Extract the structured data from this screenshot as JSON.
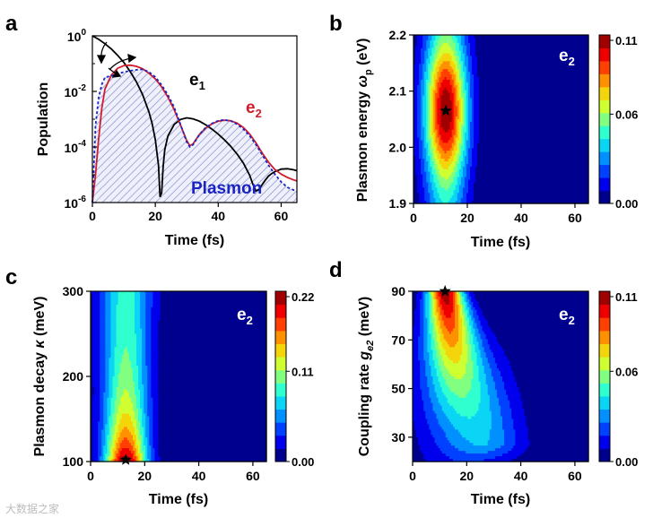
{
  "watermark": "大数据之家",
  "palette": {
    "jet": [
      "#00008f",
      "#0000ff",
      "#0060ff",
      "#00c0ff",
      "#20ffdf",
      "#80ff80",
      "#dfff20",
      "#ffc000",
      "#ff6000",
      "#ff0000",
      "#a00000"
    ],
    "e1_color": "#000000",
    "e2_color": "#d01c2c",
    "plasmon_color": "#1a24c4"
  },
  "chart_data": [
    {
      "panel": "a",
      "type": "line",
      "xlabel": "Time (fs)",
      "ylabel": "Population",
      "xlim": [
        0,
        65
      ],
      "ylim": [
        1e-06,
        1
      ],
      "yscale": "log",
      "xticks": [
        "0",
        "20",
        "40",
        "60"
      ],
      "yticks": [
        {
          "base": "10",
          "exp": "0"
        },
        {
          "base": "10",
          "exp": "-2"
        },
        {
          "base": "10",
          "exp": "-4"
        },
        {
          "base": "10",
          "exp": "-6"
        }
      ],
      "series": [
        {
          "name": "e",
          "sub": "1",
          "style": "solid",
          "color": "#000000",
          "x": [
            0,
            2,
            4,
            6,
            8,
            10,
            12,
            14,
            16,
            18,
            19,
            20,
            21,
            21.5,
            22,
            22.5,
            23,
            24,
            26,
            28,
            30,
            32,
            34,
            36,
            38,
            40,
            42,
            44,
            46,
            48,
            50,
            51,
            52,
            53,
            54,
            55,
            56,
            57,
            58,
            60,
            62,
            64,
            65
          ],
          "y": [
            1,
            0.75,
            0.52,
            0.34,
            0.2,
            0.11,
            0.052,
            0.022,
            0.0075,
            0.0018,
            0.0007,
            0.00018,
            2.2e-05,
            1.6e-06,
            2.2e-06,
            2e-05,
            8e-05,
            0.00025,
            0.00065,
            0.00098,
            0.00112,
            0.00103,
            0.00085,
            0.00063,
            0.00044,
            0.00029,
            0.00018,
            0.000105,
            5.5e-05,
            2.6e-05,
            9.5e-06,
            4.6e-06,
            2.6e-06,
            3e-06,
            4.5e-06,
            6.5e-06,
            9e-06,
            1.1e-05,
            1.3e-05,
            1.6e-05,
            1.65e-05,
            1.5e-05,
            1.4e-05
          ]
        },
        {
          "name": "e",
          "sub": "2",
          "style": "solid",
          "color": "#d01c2c",
          "x": [
            0,
            1,
            2,
            3,
            4,
            6,
            8,
            10,
            12,
            14,
            16,
            18,
            20,
            22,
            24,
            26,
            28,
            30,
            31,
            32,
            34,
            36,
            38,
            40,
            42,
            44,
            46,
            48,
            50,
            52,
            54,
            56,
            58,
            60,
            62,
            64,
            65
          ],
          "y": [
            1e-06,
            1e-05,
            0.0002,
            0.0025,
            0.012,
            0.038,
            0.068,
            0.085,
            0.088,
            0.08,
            0.065,
            0.045,
            0.028,
            0.0145,
            0.0062,
            0.0022,
            0.00062,
            0.00017,
            0.00011,
            0.00013,
            0.00028,
            0.00048,
            0.00068,
            0.00085,
            0.00092,
            0.00088,
            0.00072,
            0.0005,
            0.00029,
            0.00014,
            6e-05,
            2.8e-05,
            1.55e-05,
            1.05e-05,
            8e-06,
            6.5e-06,
            6e-06
          ]
        },
        {
          "name": "Plasmon",
          "style": "dashed",
          "color": "#1a24c4",
          "x": [
            0,
            1,
            2,
            3,
            4,
            6,
            8,
            10,
            12,
            14,
            16,
            18,
            20,
            22,
            24,
            26,
            28,
            30,
            31,
            32,
            34,
            36,
            38,
            40,
            42,
            44,
            46,
            48,
            50,
            52,
            54,
            56,
            58,
            60,
            62,
            64,
            65
          ],
          "y": [
            1e-06,
            0.0006,
            0.006,
            0.018,
            0.032,
            0.036,
            0.043,
            0.05,
            0.055,
            0.06,
            0.062,
            0.05,
            0.033,
            0.017,
            0.0075,
            0.0027,
            0.00065,
            0.00015,
            0.0001,
            0.00012,
            0.00028,
            0.0005,
            0.0007,
            0.00088,
            0.00095,
            0.00086,
            0.00066,
            0.00044,
            0.00025,
            0.00012,
            5.2e-05,
            2.2e-05,
            1.05e-05,
            5.5e-06,
            3.5e-06,
            2.8e-06,
            2.6e-06
          ]
        }
      ],
      "annotations": [
        "e1",
        "e2",
        "Plasmon"
      ]
    },
    {
      "panel": "b",
      "type": "heatmap",
      "xlabel": "Time (fs)",
      "ylabel": "Plasmon energy ω",
      "ylabel_sub": "p",
      "ylabel_unit": "(eV)",
      "label": "e",
      "label_sub": "2",
      "xlim": [
        0,
        65
      ],
      "ylim": [
        1.9,
        2.2
      ],
      "xticks": [
        "0",
        "20",
        "40",
        "60"
      ],
      "yticks": [
        "1.9",
        "2.0",
        "2.1",
        "2.2"
      ],
      "colorbar_ticks": [
        "0.00",
        "0.06",
        "0.11"
      ],
      "zmax": 0.11,
      "peak": {
        "t": 12,
        "y": 2.065,
        "sigma_t": 5.5,
        "sigma_y": 0.085
      },
      "side_lobe": {
        "t": 41,
        "y": 1.9,
        "height": 0.006,
        "sigma_t": 3,
        "sigma_y": 0.03
      },
      "star": {
        "t": 12,
        "y": 2.065
      }
    },
    {
      "panel": "c",
      "type": "heatmap",
      "xlabel": "Time (fs)",
      "ylabel": "Plasmon decay κ (meV)",
      "label": "e",
      "label_sub": "2",
      "xlim": [
        0,
        65
      ],
      "ylim": [
        100,
        300
      ],
      "xticks": [
        "0",
        "20",
        "40",
        "60"
      ],
      "yticks": [
        "100",
        "200",
        "300"
      ],
      "colorbar_ticks": [
        "0.00",
        "0.11",
        "0.22"
      ],
      "zmax": 0.22,
      "peak": {
        "t": 13,
        "y": 100,
        "sigma_t": 5.5,
        "base": 0.09,
        "decay": 55
      },
      "side_lobe": {
        "t": 41,
        "y": 100,
        "height": 0.012,
        "sigma_t": 4,
        "sigma_y": 45
      },
      "star": {
        "t": 13,
        "y": 102
      }
    },
    {
      "panel": "d",
      "type": "heatmap",
      "xlabel": "Time (fs)",
      "ylabel": "Coupling rate g",
      "ylabel_sub": "e2",
      "ylabel_unit": "(meV)",
      "label": "e",
      "label_sub": "2",
      "xlim": [
        0,
        65
      ],
      "ylim": [
        20,
        90
      ],
      "xticks": [
        "0",
        "20",
        "40",
        "60"
      ],
      "yticks": [
        "30",
        "50",
        "70",
        "90"
      ],
      "colorbar_ticks": [
        "0.00",
        "0.06",
        "0.11"
      ],
      "zmax": 0.11,
      "peak": {
        "t": 12,
        "y": 90
      },
      "star": {
        "t": 12,
        "y": 90
      }
    }
  ],
  "panels": {
    "a": {
      "letter": "a",
      "ylabel": "Population",
      "xlabel": "Time (fs)",
      "label_e1": "e",
      "label_e1_sub": "1",
      "label_e2": "e",
      "label_e2_sub": "2",
      "label_plasmon": "Plasmon",
      "xticks": [
        "0",
        "20",
        "40",
        "60"
      ]
    },
    "b": {
      "letter": "b",
      "ylabel": "Plasmon energy ",
      "ylabel_sym": "ω",
      "ylabel_sub": "p",
      "ylabel_unit": " (eV)",
      "xlabel": "Time (fs)",
      "xticks": [
        "0",
        "20",
        "40",
        "60"
      ],
      "yticks": [
        "1.9",
        "2.0",
        "2.1",
        "2.2"
      ],
      "cbticks": [
        "0.00",
        "0.06",
        "0.11"
      ],
      "inlabel": "e",
      "inlabel_sub": "2"
    },
    "c": {
      "letter": "c",
      "ylabel": "Plasmon decay ",
      "ylabel_sym": "κ",
      "ylabel_unit": " (meV)",
      "xlabel": "Time (fs)",
      "xticks": [
        "0",
        "20",
        "40",
        "60"
      ],
      "yticks": [
        "100",
        "200",
        "300"
      ],
      "cbticks": [
        "0.00",
        "0.11",
        "0.22"
      ],
      "inlabel": "e",
      "inlabel_sub": "2"
    },
    "d": {
      "letter": "d",
      "ylabel": "Coupling rate ",
      "ylabel_sym": "g",
      "ylabel_sub": "e2",
      "ylabel_unit": " (meV)",
      "xlabel": "Time (fs)",
      "xticks": [
        "0",
        "20",
        "40",
        "60"
      ],
      "yticks": [
        "30",
        "50",
        "70",
        "90"
      ],
      "cbticks": [
        "0.00",
        "0.06",
        "0.11"
      ],
      "inlabel": "e",
      "inlabel_sub": "2"
    }
  }
}
